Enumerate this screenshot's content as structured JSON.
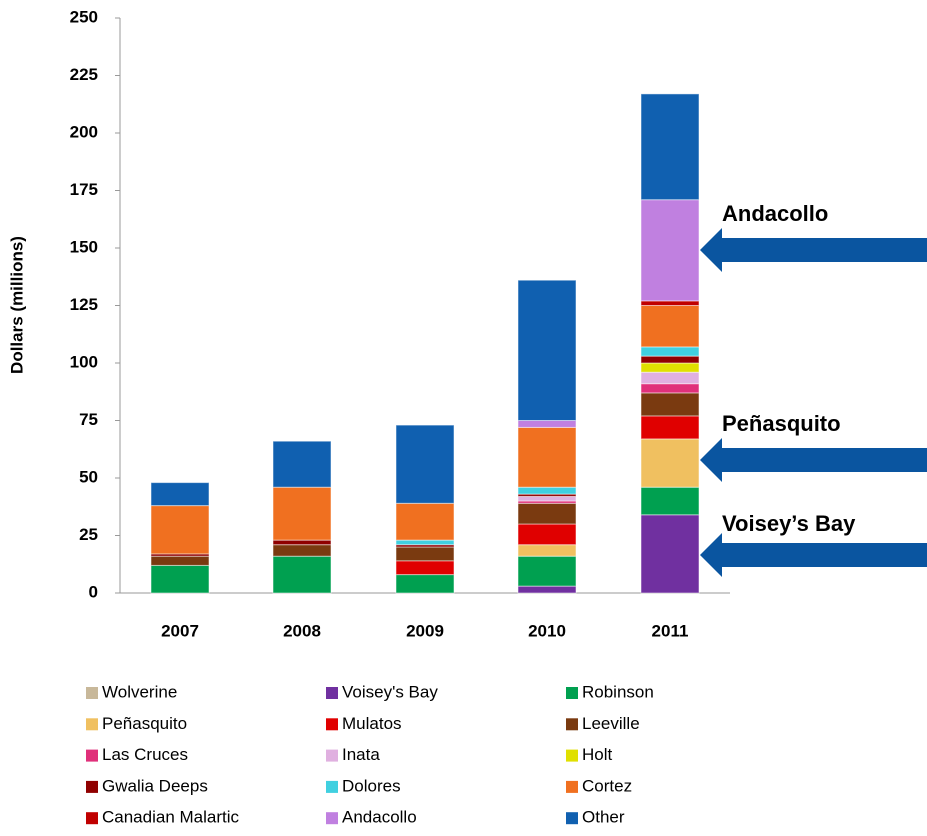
{
  "chart_data": {
    "type": "stacked_bar",
    "y_label": "Dollars (millions)",
    "categories": [
      "2007",
      "2008",
      "2009",
      "2010",
      "2011"
    ],
    "ylim": [
      0,
      250
    ],
    "yticks": [
      0,
      25,
      50,
      75,
      100,
      125,
      150,
      175,
      200,
      225,
      250
    ],
    "series": [
      {
        "name": "Wolverine",
        "color": "#c8b89a",
        "values": [
          0,
          0,
          0,
          0,
          0
        ]
      },
      {
        "name": "Voisey's Bay",
        "color": "#7030a0",
        "values": [
          0,
          0,
          0,
          3,
          34
        ]
      },
      {
        "name": "Robinson",
        "color": "#00a050",
        "values": [
          12,
          16,
          8,
          13,
          12
        ]
      },
      {
        "name": "Peñasquito",
        "color": "#f0c060",
        "values": [
          0,
          0,
          0,
          5,
          21
        ]
      },
      {
        "name": "Mulatos",
        "color": "#e00000",
        "values": [
          0,
          0,
          6,
          9,
          10
        ]
      },
      {
        "name": "Leeville",
        "color": "#7a3a10",
        "values": [
          4,
          5,
          6,
          9,
          10
        ]
      },
      {
        "name": "Las Cruces",
        "color": "#e0307a",
        "values": [
          0,
          0,
          0,
          1,
          4
        ]
      },
      {
        "name": "Inata",
        "color": "#e0b0e0",
        "values": [
          0,
          0,
          0,
          2,
          5
        ]
      },
      {
        "name": "Holt",
        "color": "#e0e000",
        "values": [
          0,
          0,
          0,
          0,
          4
        ]
      },
      {
        "name": "Gwalia Deeps",
        "color": "#900000",
        "values": [
          1,
          2,
          1,
          1,
          3
        ]
      },
      {
        "name": "Dolores",
        "color": "#40d0e0",
        "values": [
          0,
          0,
          2,
          3,
          4
        ]
      },
      {
        "name": "Cortez",
        "color": "#f07020",
        "values": [
          21,
          23,
          16,
          26,
          18
        ]
      },
      {
        "name": "Canadian Malartic",
        "color": "#c00000",
        "values": [
          0,
          0,
          0,
          0,
          2
        ]
      },
      {
        "name": "Andacollo",
        "color": "#c080e0",
        "values": [
          0,
          0,
          0,
          3,
          44
        ]
      },
      {
        "name": "Other",
        "color": "#1060b0",
        "values": [
          10,
          20,
          34,
          61,
          46
        ]
      }
    ],
    "annotations": [
      "Andacollo",
      "Peñasquito",
      "Voisey’s Bay"
    ]
  }
}
